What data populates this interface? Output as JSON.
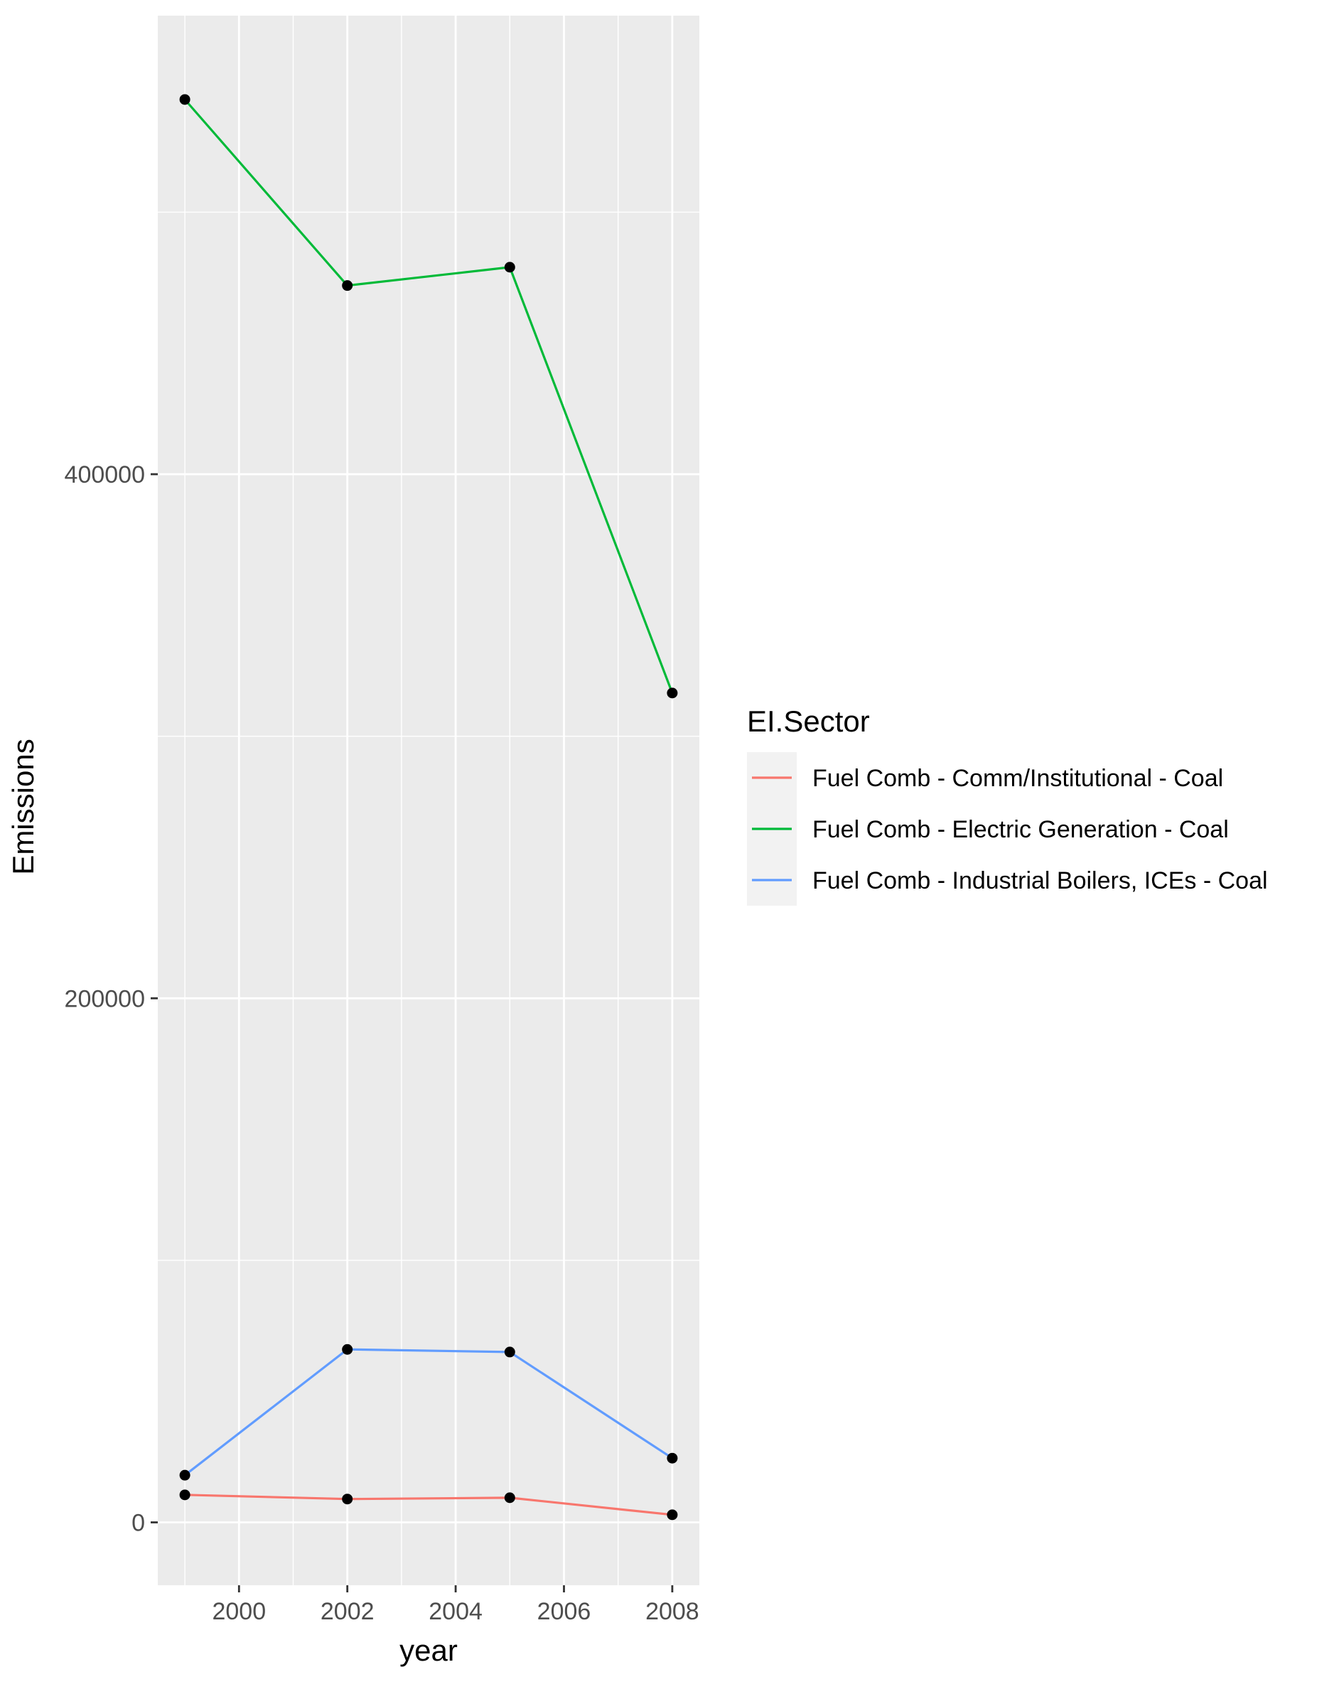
{
  "chart_data": {
    "type": "line",
    "title": "",
    "xlabel": "year",
    "ylabel": "Emissions",
    "xlim": [
      1998.5,
      2008.5
    ],
    "ylim": [
      -24000,
      575000
    ],
    "x_ticks": [
      2000,
      2002,
      2004,
      2006,
      2008
    ],
    "x_tick_labels": [
      "2000",
      "2002",
      "2004",
      "2006",
      "2008"
    ],
    "x_minor_ticks": [
      1999,
      2001,
      2003,
      2005,
      2007
    ],
    "y_ticks": [
      0,
      200000,
      400000
    ],
    "y_tick_labels": [
      "0",
      "200000",
      "400000"
    ],
    "y_minor_ticks": [
      100000,
      300000,
      500000
    ],
    "x": [
      1999,
      2002,
      2005,
      2008
    ],
    "series": [
      {
        "name": "Fuel Comb - Comm/Institutional - Coal",
        "color": "#F8766D",
        "values": [
          10500,
          8900,
          9400,
          2900
        ]
      },
      {
        "name": "Fuel Comb - Electric Generation - Coal",
        "color": "#00BA38",
        "values": [
          543000,
          472000,
          479000,
          316500
        ]
      },
      {
        "name": "Fuel Comb - Industrial Boilers, ICEs - Coal",
        "color": "#619CFF",
        "values": [
          18000,
          66000,
          65000,
          24500
        ]
      }
    ],
    "point_color": "#000000",
    "grid": true,
    "panel_background": "#EBEBEB",
    "grid_color": "#FFFFFF",
    "legend": {
      "title": "EI.Sector",
      "position": "right",
      "key_background": "#F2F2F2"
    }
  }
}
